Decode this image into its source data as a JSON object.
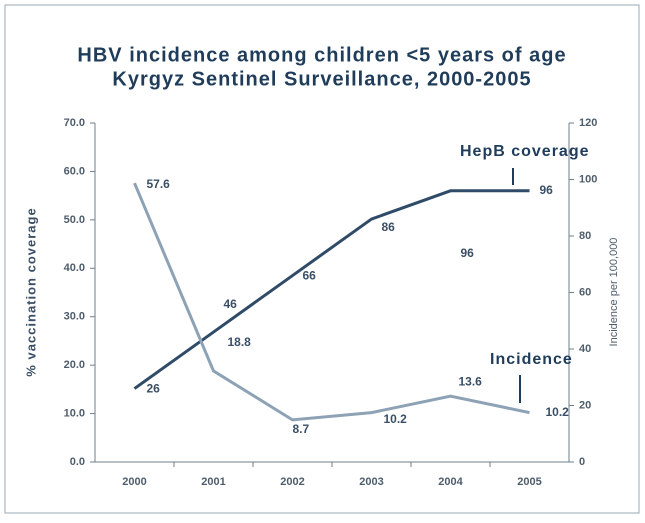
{
  "chart_data": {
    "type": "line",
    "title": "HBV incidence among children <5 years of age",
    "subtitle": "Kyrgyz Sentinel Surveillance, 2000-2005",
    "y_label": "% vaccination coverage",
    "y2_label": "Incidence per 100,000",
    "categories": [
      "2000",
      "2001",
      "2002",
      "2003",
      "2004",
      "2005"
    ],
    "series": [
      {
        "name": "HepB coverage",
        "color": "#2f4b68",
        "axis": "y2",
        "values": [
          26,
          46,
          66,
          86,
          96,
          96
        ]
      },
      {
        "name": "Incidence",
        "color": "#8ea2b5",
        "axis": "y",
        "values": [
          57.6,
          18.8,
          8.7,
          10.2,
          13.6,
          10.2
        ]
      }
    ],
    "ylim": [
      0,
      70
    ],
    "yticks": [
      {
        "value": 0,
        "label": "0.0"
      },
      {
        "value": 10,
        "label": "10.0"
      },
      {
        "value": 20,
        "label": "20.0"
      },
      {
        "value": 30,
        "label": "30.0"
      },
      {
        "value": 40,
        "label": "40.0"
      },
      {
        "value": 50,
        "label": "50.0"
      },
      {
        "value": 60,
        "label": "60.0"
      },
      {
        "value": 70,
        "label": "70.0"
      }
    ],
    "y2lim": [
      0,
      120
    ],
    "y2ticks": [
      0,
      20,
      40,
      60,
      80,
      100,
      120
    ],
    "grid": false
  }
}
